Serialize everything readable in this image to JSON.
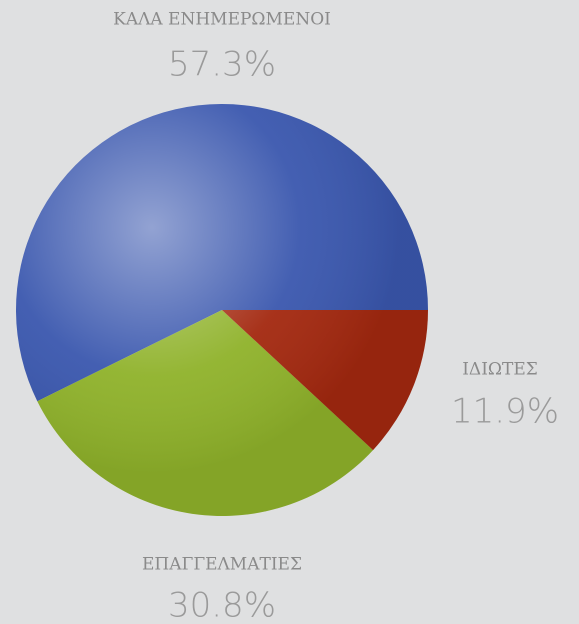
{
  "chart_data": {
    "type": "pie",
    "categories": [
      "ΚΑΛΑ ΕΝΗΜΕΡΩΜΕΝΟΙ",
      "ΕΠΑΓΓΕΛΜΑΤΙΕΣ",
      "ΙΔΙΩΤΕΣ"
    ],
    "values": [
      57.3,
      30.8,
      11.9
    ],
    "value_labels": [
      "57.3%",
      "30.8%",
      "11.9%"
    ],
    "colors": [
      "#3a57ae",
      "#8fb22a",
      "#a3280f"
    ]
  }
}
